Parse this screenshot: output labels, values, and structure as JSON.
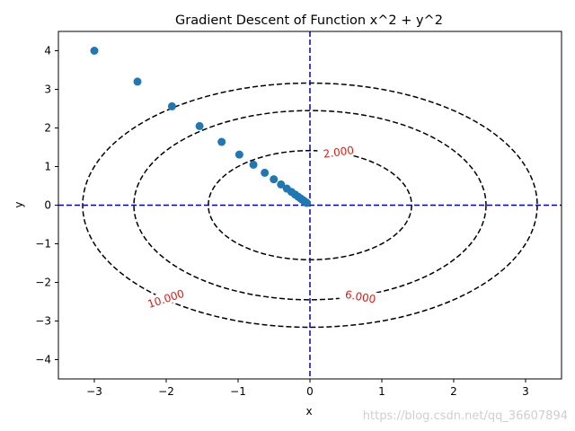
{
  "chart_data": {
    "type": "scatter",
    "title": "Gradient Descent of Function x^2 + y^2",
    "xlabel": "x",
    "ylabel": "y",
    "xlim": [
      -3.5,
      3.5
    ],
    "ylim": [
      -4.5,
      4.5
    ],
    "xticks": [
      -3,
      -2,
      -1,
      0,
      1,
      2,
      3
    ],
    "yticks": [
      -4,
      -3,
      -2,
      -1,
      0,
      1,
      2,
      3,
      4
    ],
    "grid": false,
    "point_color": "#1f77b4",
    "contour_color": "#000000",
    "contour_label_color": "#e8190f",
    "reference_line_color": "#0000cc",
    "contours": [
      {
        "level": 2,
        "label": "2.000",
        "label_x": 0.4,
        "label_y": 1.35,
        "label_angle": 8
      },
      {
        "level": 6,
        "label": "6.000",
        "label_x": 0.7,
        "label_y": -2.4,
        "label_angle": -10
      },
      {
        "level": 10,
        "label": "10.000",
        "label_x": -2.0,
        "label_y": -2.45,
        "label_angle": 18
      }
    ],
    "reference_lines": [
      {
        "orientation": "horizontal",
        "value": 0
      },
      {
        "orientation": "vertical",
        "value": 0
      }
    ],
    "series": [
      {
        "x": [
          -3.0,
          -2.4,
          -1.92,
          -1.536,
          -1.2288,
          -0.983,
          -0.7864,
          -0.6291,
          -0.5033,
          -0.4027,
          -0.3221,
          -0.2577,
          -0.2062,
          -0.1649,
          -0.1319,
          -0.1056,
          -0.0844,
          -0.0676,
          -0.054,
          -0.0432
        ],
        "y": [
          4.0,
          3.2,
          2.56,
          2.048,
          1.6384,
          1.3107,
          1.0486,
          0.8389,
          0.6711,
          0.5369,
          0.4295,
          0.3436,
          0.2749,
          0.2199,
          0.1759,
          0.1407,
          0.1126,
          0.0901,
          0.0721,
          0.0576
        ]
      }
    ]
  },
  "watermark": "https://blog.csdn.net/qq_36607894"
}
